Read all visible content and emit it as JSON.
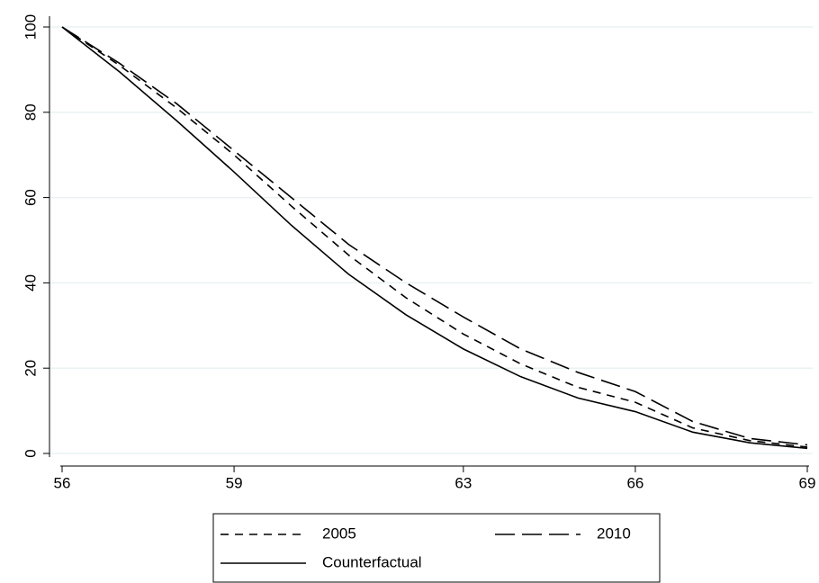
{
  "chart_data": {
    "type": "line",
    "x": [
      56,
      57,
      58,
      59,
      60,
      61,
      62,
      63,
      64,
      65,
      66,
      67,
      68,
      69
    ],
    "series": [
      {
        "name": "2005",
        "color": "#000000",
        "line_style": "short-dash",
        "values": [
          100,
          91,
          81,
          70,
          58,
          46.5,
          36.5,
          28,
          21,
          15.5,
          12,
          6,
          3,
          1.5
        ]
      },
      {
        "name": "2010",
        "color": "#000000",
        "line_style": "long-dash",
        "values": [
          100,
          91.5,
          82,
          71,
          60,
          49,
          40,
          32,
          24.5,
          19,
          14.5,
          7.5,
          3.5,
          2
        ]
      },
      {
        "name": "Counterfactual",
        "color": "#000000",
        "line_style": "solid",
        "values": [
          100,
          89.5,
          78,
          66,
          53.5,
          42,
          32.5,
          24.5,
          18,
          13,
          9.8,
          5,
          2.5,
          1.2
        ]
      }
    ],
    "xlim": [
      56,
      69
    ],
    "xticks": [
      56,
      59,
      63,
      66,
      69
    ],
    "ylim": [
      0,
      100
    ],
    "yticks": [
      0,
      20,
      40,
      60,
      80,
      100
    ],
    "grid": true,
    "legend": "bottom"
  }
}
